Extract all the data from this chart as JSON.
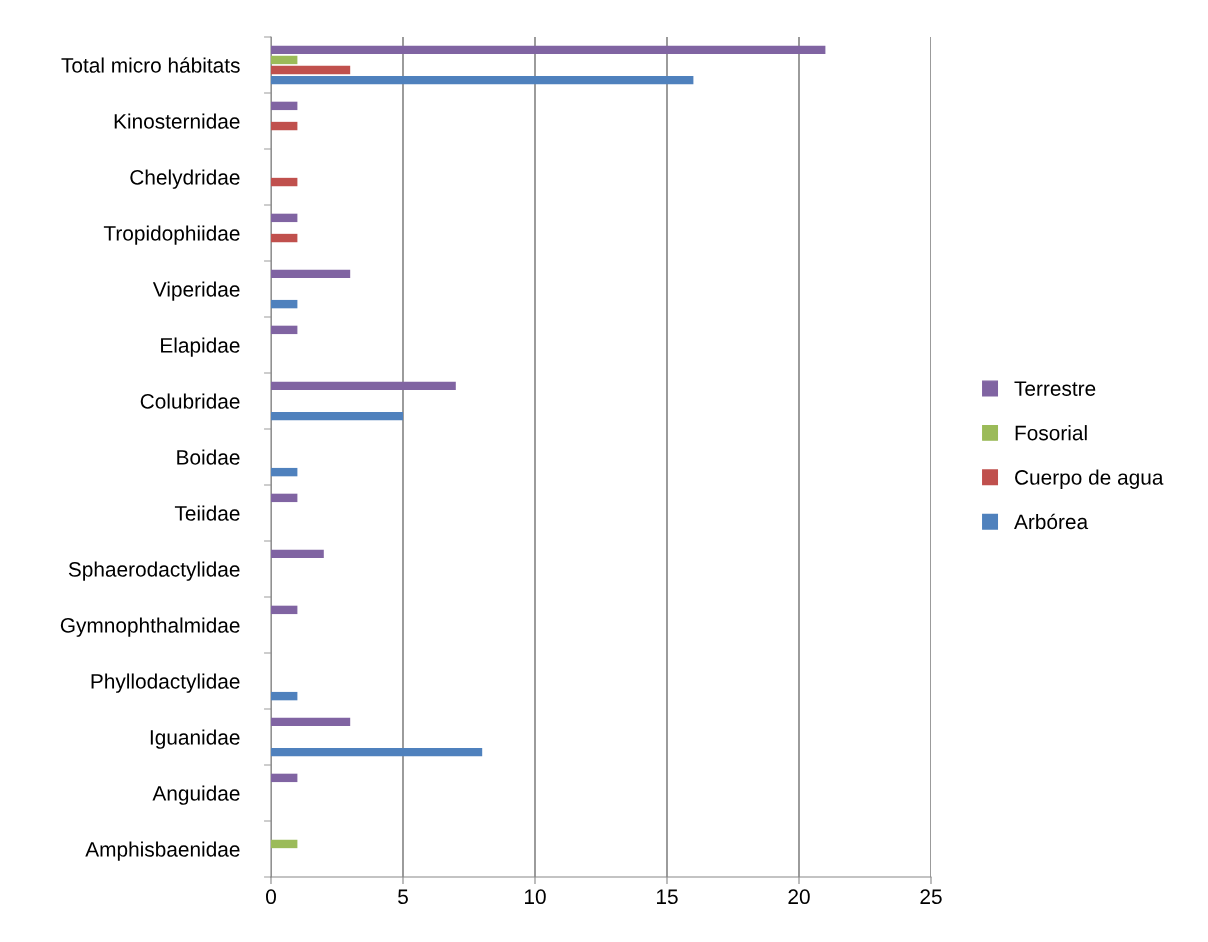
{
  "chart_data": {
    "type": "bar",
    "orientation": "horizontal",
    "categories": [
      "Total micro hábitats",
      "Kinosternidae",
      "Chelydridae",
      "Tropidophiidae",
      "Viperidae",
      "Elapidae",
      "Colubridae",
      "Boidae",
      "Teiidae",
      "Sphaerodactylidae",
      "Gymnophthalmidae",
      "Phyllodactylidae",
      "Iguanidae",
      "Anguidae",
      "Amphisbaenidae"
    ],
    "series": [
      {
        "name": "Terrestre",
        "color": "#8064a2",
        "values": [
          21,
          1,
          null,
          1,
          3,
          1,
          7,
          null,
          1,
          2,
          1,
          null,
          3,
          1,
          null
        ]
      },
      {
        "name": "Fosorial",
        "color": "#9bbb59",
        "values": [
          1,
          null,
          null,
          null,
          null,
          null,
          null,
          null,
          null,
          null,
          null,
          null,
          null,
          null,
          1
        ]
      },
      {
        "name": "Cuerpo de agua",
        "color": "#c0504d",
        "values": [
          3,
          1,
          1,
          1,
          null,
          null,
          null,
          null,
          null,
          null,
          null,
          null,
          null,
          null,
          null
        ]
      },
      {
        "name": "Arbórea",
        "color": "#4f81bd",
        "values": [
          16,
          null,
          null,
          null,
          1,
          null,
          5,
          1,
          null,
          null,
          null,
          1,
          8,
          null,
          null
        ]
      }
    ],
    "xlim": [
      0,
      25
    ],
    "xticks": [
      0,
      5,
      10,
      15,
      20,
      25
    ],
    "grid": "x",
    "legend": "right"
  }
}
